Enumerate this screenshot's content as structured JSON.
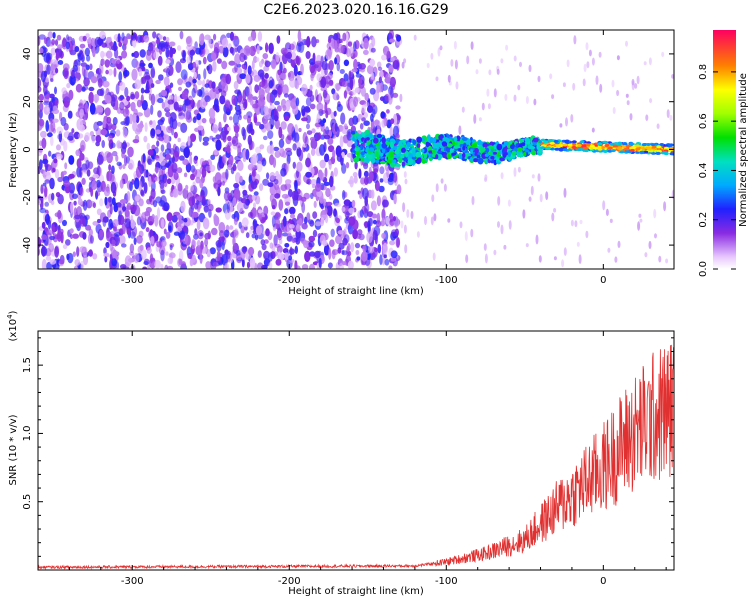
{
  "title": "C2E6.2023.020.16.16.G29",
  "chart_data": [
    {
      "type": "heatmap",
      "xlabel": "Height of straight line (km)",
      "ylabel": "Frequency (Hz)",
      "xlim": [
        -360,
        45
      ],
      "ylim": [
        -50,
        50
      ],
      "xticks": [
        -300,
        -200,
        -100,
        0
      ],
      "yticks": [
        -40,
        -20,
        0,
        20,
        40
      ],
      "colorbar": {
        "label": "Normalized spectral amplitude",
        "range": [
          0,
          0.97
        ],
        "ticks": [
          0.0,
          0.2,
          0.4,
          0.6,
          0.8
        ]
      },
      "regions": [
        {
          "desc": "noise",
          "x": [
            -360,
            -130
          ],
          "y": [
            -50,
            48
          ],
          "amplitude": [
            0.05,
            0.25
          ]
        },
        {
          "desc": "signal onset",
          "x": [
            -160,
            -40
          ],
          "y_center": 0,
          "amplitude": [
            0.2,
            0.55
          ]
        },
        {
          "desc": "signal track",
          "x": [
            -40,
            45
          ],
          "y_center": [
            2,
            0
          ],
          "amplitude": [
            0.7,
            0.95
          ]
        }
      ]
    },
    {
      "type": "line",
      "xlabel": "Height of straight line (km)",
      "ylabel": "SNR (10 * v/v)",
      "y_multiplier": "(x10^4)",
      "xlim": [
        -360,
        45
      ],
      "ylim": [
        0,
        1.75
      ],
      "xticks": [
        -300,
        -200,
        -100,
        0
      ],
      "yticks": [
        0.5,
        1.0,
        1.5
      ],
      "series_color": "#e03030",
      "trend": [
        {
          "x": -360,
          "y": 0.02
        },
        {
          "x": -120,
          "y": 0.03
        },
        {
          "x": -100,
          "y": 0.06
        },
        {
          "x": -75,
          "y": 0.12
        },
        {
          "x": -50,
          "y": 0.22
        },
        {
          "x": -30,
          "y": 0.45
        },
        {
          "x": -10,
          "y": 0.65
        },
        {
          "x": 0,
          "y": 0.75
        },
        {
          "x": 15,
          "y": 0.95
        },
        {
          "x": 30,
          "y": 1.1
        },
        {
          "x": 45,
          "y": 1.2
        }
      ]
    }
  ]
}
